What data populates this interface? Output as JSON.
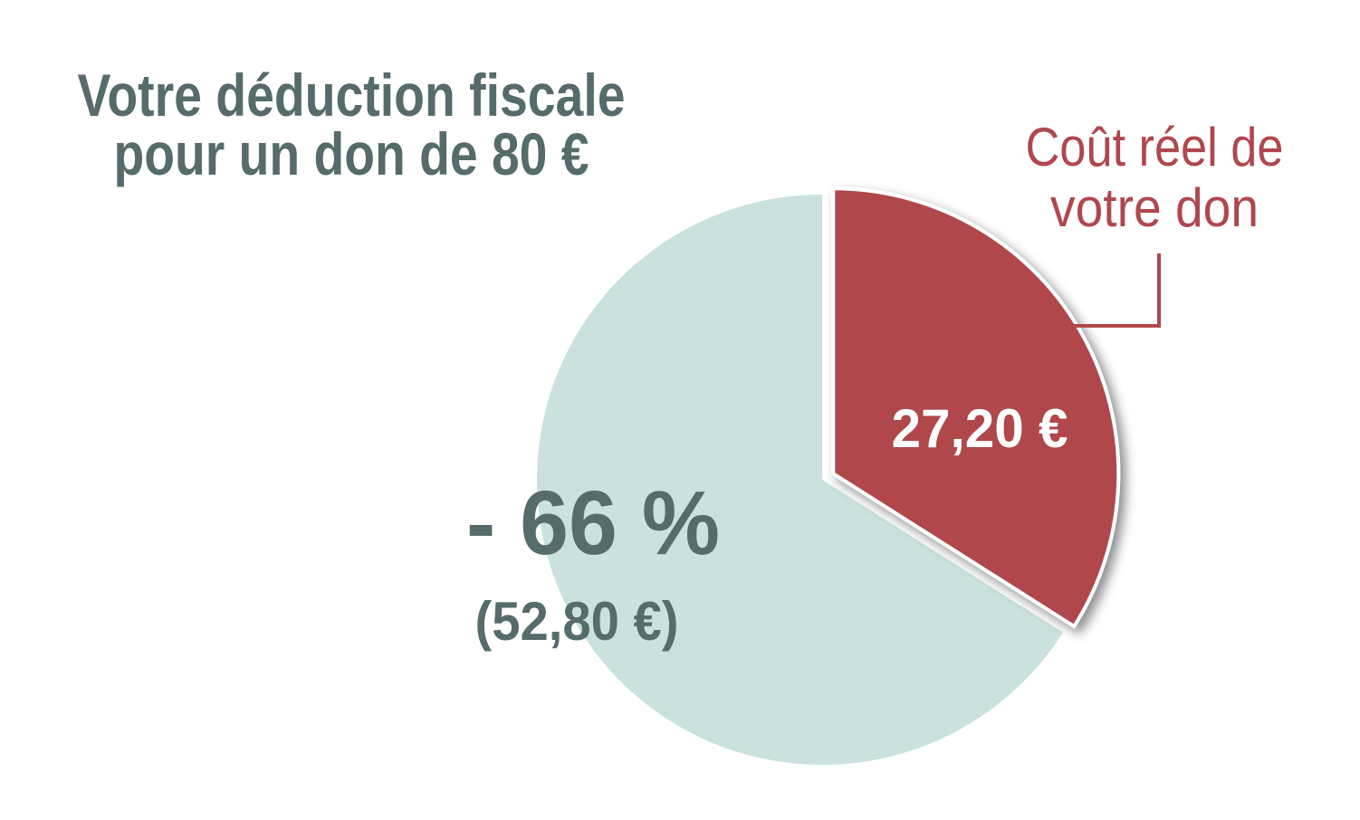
{
  "chart_data": {
    "type": "pie",
    "title": [
      "Votre déduction fiscale",
      "pour un don de 80 €"
    ],
    "values": [
      52.8,
      27.2
    ],
    "value_labels": [
      "(52,80 €)",
      "27,20 €"
    ],
    "colors": [
      "#c9e1df",
      "#b0474c"
    ],
    "annotations": [
      {
        "text": "- 66 %"
      },
      {
        "text": [
          "Coût réel de",
          "votre don"
        ]
      }
    ]
  }
}
